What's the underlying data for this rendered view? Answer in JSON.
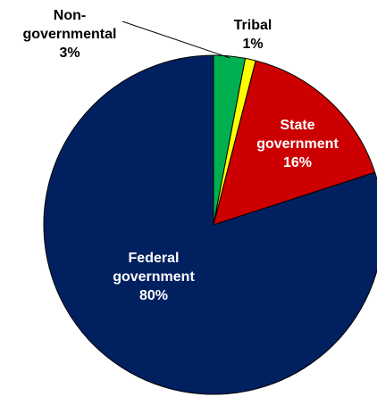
{
  "chart_data": {
    "type": "pie",
    "title": "",
    "slices": [
      {
        "name": "Non-governmental",
        "label_lines": [
          "Non-",
          "governmental",
          "3%"
        ],
        "value": 3,
        "color": "#00b050",
        "label_color": "#000000"
      },
      {
        "name": "Tribal",
        "label_lines": [
          "Tribal",
          "1%"
        ],
        "value": 1,
        "color": "#ffff00",
        "label_color": "#000000"
      },
      {
        "name": "State government",
        "label_lines": [
          "State",
          "government",
          "16%"
        ],
        "value": 16,
        "color": "#cc0000",
        "label_color": "#ffffff"
      },
      {
        "name": "Federal government",
        "label_lines": [
          "Federal",
          "government",
          "80%"
        ],
        "value": 80,
        "color": "#002060",
        "label_color": "#ffffff"
      }
    ],
    "legend": "none"
  }
}
